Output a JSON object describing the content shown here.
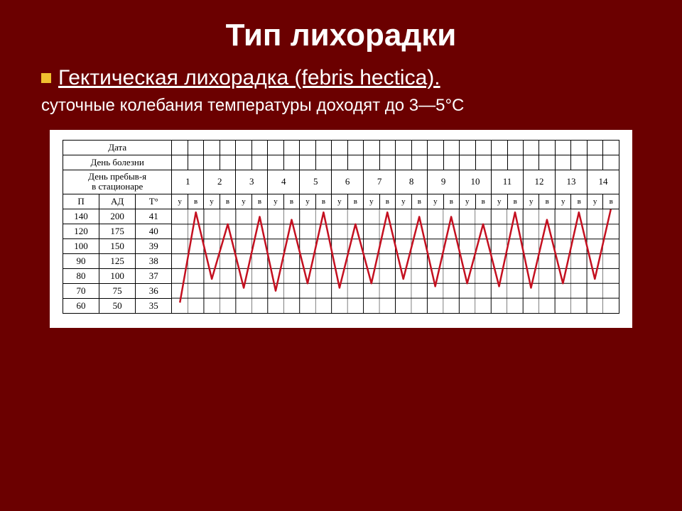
{
  "title": "Тип лихорадки",
  "subtitle": "Гектическая лихорадка (febris hectica).",
  "description": "суточные колебания температуры доходят до 3—5°C",
  "colors": {
    "background": "#6b0000",
    "text": "#ffffff",
    "bullet": "#f0c030",
    "chart_bg": "#ffffff",
    "line": "#c41020",
    "grid": "#000000"
  },
  "chart": {
    "header_labels": {
      "date": "Дата",
      "illness_day": "День болезни",
      "stay_day": "День пребыв-я в стационаре",
      "pulse": "П",
      "bp": "АД",
      "temp": "T°",
      "morning": "у",
      "evening": "в"
    },
    "days": [
      1,
      2,
      3,
      4,
      5,
      6,
      7,
      8,
      9,
      10,
      11,
      12,
      13,
      14
    ],
    "param_rows": [
      {
        "p": "140",
        "ad": "200",
        "t": "41"
      },
      {
        "p": "120",
        "ad": "175",
        "t": "40"
      },
      {
        "p": "100",
        "ad": "150",
        "t": "39"
      },
      {
        "p": "90",
        "ad": "125",
        "t": "38"
      },
      {
        "p": "80",
        "ad": "100",
        "t": "37"
      },
      {
        "p": "70",
        "ad": "75",
        "t": "36"
      },
      {
        "p": "60",
        "ad": "50",
        "t": "35"
      }
    ],
    "temp_scale": {
      "min": 35,
      "max": 41
    },
    "line_width": 2.5,
    "temp_values": [
      35.2,
      41.3,
      36.8,
      40.5,
      36.2,
      41.0,
      36.0,
      40.8,
      36.5,
      41.3,
      36.2,
      40.5,
      36.5,
      41.3,
      36.8,
      41.0,
      36.3,
      41.0,
      36.5,
      40.5,
      36.3,
      41.3,
      36.2,
      40.8,
      36.5,
      41.3,
      36.8,
      41.5
    ]
  }
}
